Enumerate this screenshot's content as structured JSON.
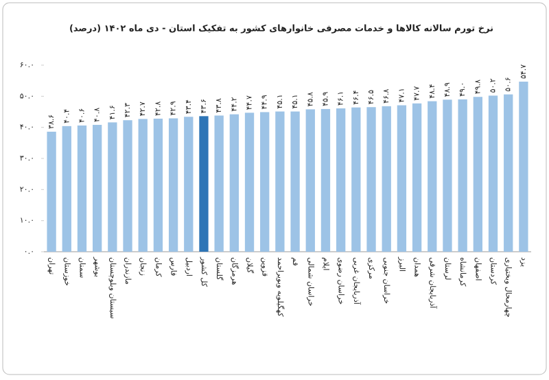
{
  "chart_data": {
    "type": "bar",
    "title": "نرخ تورم سالانه کالاها و خدمات مصرفی خانوارهای کشور به تفکیک استان - دی ماه ۱۴۰۲ (درصد)",
    "categories": [
      "تهران",
      "خوزستان",
      "سمنان",
      "بوشهر",
      "سیستان وبلوچستان",
      "مازندران",
      "زنجان",
      "کرمان",
      "فارس",
      "اردبیل",
      "کل کشور",
      "گلستان",
      "هرمزگان",
      "گیلان",
      "قزوین",
      "کهگیلویه وبویراحمد",
      "قم",
      "خراسان شمالی",
      "ایلام",
      "خراسان رضوی",
      "آذربایجان غربی",
      "مرکزی",
      "خراسان جنوبی",
      "البرز",
      "همدان",
      "آذربایجان شرقی",
      "لرستان",
      "کرمانشاه",
      "اصفهان",
      "کردستان",
      "چهارمحال وبختیاری",
      "یزد"
    ],
    "values": [
      38.6,
      40.4,
      40.6,
      40.8,
      41.6,
      42.3,
      42.7,
      42.8,
      42.9,
      43.4,
      43.6,
      43.8,
      44.2,
      44.7,
      44.9,
      45.1,
      45.1,
      45.8,
      45.9,
      46.1,
      46.4,
      46.5,
      46.8,
      47.1,
      47.7,
      48.4,
      48.9,
      49.0,
      49.8,
      50.2,
      50.6,
      54.7
    ],
    "value_labels": [
      "۳۸.۶",
      "۴۰.۴",
      "۴۰.۶",
      "۴۰.۸",
      "۴۱.۶",
      "۴۲.۳",
      "۴۲.۷",
      "۴۲.۸",
      "۴۲.۹",
      "۴۳.۴",
      "۴۳.۶",
      "۴۳.۸",
      "۴۴.۲",
      "۴۴.۷",
      "۴۴.۹",
      "۴۵.۱",
      "۴۵.۱",
      "۴۵.۸",
      "۴۵.۹",
      "۴۶.۱",
      "۴۶.۴",
      "۴۶.۵",
      "۴۶.۸",
      "۴۷.۱",
      "۴۷.۷",
      "۴۸.۴",
      "۴۸.۹",
      "۴۹.۰",
      "۴۹.۸",
      "۵۰.۲",
      "۵۰.۶",
      "۵۴.۷"
    ],
    "colors": [
      "#9dc3e6",
      "#9dc3e6",
      "#9dc3e6",
      "#9dc3e6",
      "#9dc3e6",
      "#9dc3e6",
      "#9dc3e6",
      "#9dc3e6",
      "#9dc3e6",
      "#9dc3e6",
      "#2e75b6",
      "#9dc3e6",
      "#9dc3e6",
      "#9dc3e6",
      "#9dc3e6",
      "#9dc3e6",
      "#9dc3e6",
      "#9dc3e6",
      "#9dc3e6",
      "#9dc3e6",
      "#9dc3e6",
      "#9dc3e6",
      "#9dc3e6",
      "#9dc3e6",
      "#9dc3e6",
      "#9dc3e6",
      "#9dc3e6",
      "#9dc3e6",
      "#9dc3e6",
      "#9dc3e6",
      "#9dc3e6",
      "#9dc3e6"
    ],
    "ylim": [
      0,
      60
    ],
    "yticks": [
      {
        "value": 0,
        "label": "۰.۰"
      },
      {
        "value": 10,
        "label": "۱۰.۰"
      },
      {
        "value": 20,
        "label": "۲۰.۰"
      },
      {
        "value": 30,
        "label": "۳۰.۰"
      },
      {
        "value": 40,
        "label": "۴۰.۰"
      },
      {
        "value": 50,
        "label": "۵۰.۰"
      },
      {
        "value": 60,
        "label": "۶۰.۰"
      }
    ],
    "grid": false
  }
}
